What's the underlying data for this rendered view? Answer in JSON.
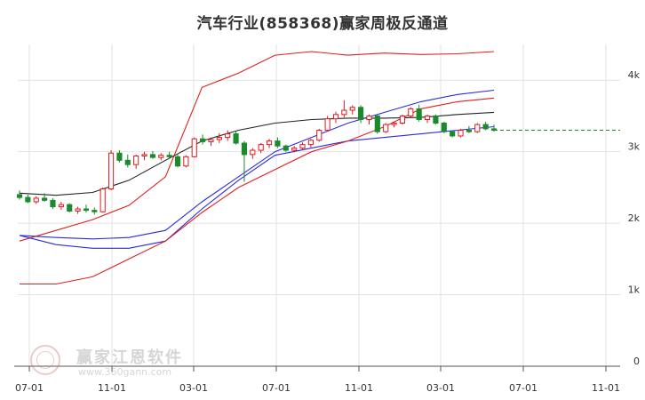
{
  "title": "汽车行业(858368)赢家周极反通道",
  "watermark": {
    "name": "赢家江恩软件",
    "url": "www.360gann.com"
  },
  "chart_data": {
    "type": "candlestick",
    "title": "汽车行业(858368)赢家周极反通道",
    "x_ticks": [
      "07-01",
      "11-01",
      "03-01",
      "07-01",
      "11-01",
      "03-01",
      "07-01",
      "11-01"
    ],
    "y_ticks": [
      "0",
      "1k",
      "2k",
      "3k",
      "4k"
    ],
    "ylim": [
      0,
      4500
    ],
    "grid": true,
    "last_price_line": 3300,
    "colors": {
      "up": "#e0191c",
      "down": "#1b8a2c",
      "outer_band": "#e02020",
      "inner_band": "#2a2ae0",
      "middle_line": "#222222",
      "last_price": "#1b8a2c",
      "grid": "#e2e2e2"
    },
    "series": [
      {
        "name": "",
        "color": "outer_band",
        "values": [
          1750,
          1900,
          2050,
          2250,
          2650,
          3900,
          4100,
          4350,
          4400,
          4350,
          4380,
          4360,
          4370,
          4400
        ]
      },
      {
        "name": "",
        "color": "inner_band",
        "values": [
          1830,
          1700,
          1650,
          1650,
          1750,
          2200,
          2600,
          2950,
          3050,
          3150,
          3200,
          3250,
          3300,
          3350
        ]
      },
      {
        "name": "",
        "color": "middle_line",
        "values": [
          2420,
          2390,
          2430,
          2600,
          2880,
          3150,
          3300,
          3400,
          3450,
          3470,
          3470,
          3480,
          3520,
          3550
        ]
      },
      {
        "name": "",
        "color": "inner_band",
        "values": [
          1830,
          1800,
          1780,
          1800,
          1900,
          2300,
          2650,
          3000,
          3200,
          3400,
          3550,
          3700,
          3800,
          3860
        ]
      },
      {
        "name": "",
        "color": "outer_band",
        "values": [
          1150,
          1150,
          1250,
          1500,
          1750,
          2150,
          2500,
          2750,
          3000,
          3150,
          3350,
          3600,
          3700,
          3750
        ]
      }
    ],
    "candles": [
      {
        "o": 2400,
        "h": 2460,
        "l": 2330,
        "c": 2360
      },
      {
        "o": 2360,
        "h": 2400,
        "l": 2280,
        "c": 2300
      },
      {
        "o": 2300,
        "h": 2380,
        "l": 2270,
        "c": 2350
      },
      {
        "o": 2350,
        "h": 2420,
        "l": 2300,
        "c": 2320
      },
      {
        "o": 2320,
        "h": 2350,
        "l": 2200,
        "c": 2230
      },
      {
        "o": 2230,
        "h": 2300,
        "l": 2190,
        "c": 2260
      },
      {
        "o": 2260,
        "h": 2280,
        "l": 2150,
        "c": 2170
      },
      {
        "o": 2170,
        "h": 2230,
        "l": 2130,
        "c": 2200
      },
      {
        "o": 2200,
        "h": 2260,
        "l": 2150,
        "c": 2180
      },
      {
        "o": 2180,
        "h": 2220,
        "l": 2120,
        "c": 2160
      },
      {
        "o": 2160,
        "h": 2500,
        "l": 2150,
        "c": 2480
      },
      {
        "o": 2480,
        "h": 3020,
        "l": 2460,
        "c": 2980
      },
      {
        "o": 2980,
        "h": 3020,
        "l": 2850,
        "c": 2880
      },
      {
        "o": 2880,
        "h": 2960,
        "l": 2780,
        "c": 2820
      },
      {
        "o": 2820,
        "h": 2960,
        "l": 2760,
        "c": 2940
      },
      {
        "o": 2940,
        "h": 3000,
        "l": 2880,
        "c": 2960
      },
      {
        "o": 2960,
        "h": 3010,
        "l": 2900,
        "c": 2920
      },
      {
        "o": 2920,
        "h": 2980,
        "l": 2880,
        "c": 2950
      },
      {
        "o": 2950,
        "h": 3000,
        "l": 2900,
        "c": 2930
      },
      {
        "o": 2930,
        "h": 2960,
        "l": 2780,
        "c": 2800
      },
      {
        "o": 2800,
        "h": 2950,
        "l": 2780,
        "c": 2930
      },
      {
        "o": 2930,
        "h": 3200,
        "l": 2920,
        "c": 3180
      },
      {
        "o": 3180,
        "h": 3240,
        "l": 3100,
        "c": 3140
      },
      {
        "o": 3140,
        "h": 3200,
        "l": 3080,
        "c": 3170
      },
      {
        "o": 3170,
        "h": 3260,
        "l": 3120,
        "c": 3200
      },
      {
        "o": 3200,
        "h": 3300,
        "l": 3150,
        "c": 3250
      },
      {
        "o": 3250,
        "h": 3280,
        "l": 3100,
        "c": 3120
      },
      {
        "o": 3120,
        "h": 3150,
        "l": 2580,
        "c": 2960
      },
      {
        "o": 2960,
        "h": 3050,
        "l": 2900,
        "c": 3020
      },
      {
        "o": 3020,
        "h": 3120,
        "l": 2980,
        "c": 3100
      },
      {
        "o": 3100,
        "h": 3180,
        "l": 3050,
        "c": 3150
      },
      {
        "o": 3150,
        "h": 3200,
        "l": 3050,
        "c": 3080
      },
      {
        "o": 3080,
        "h": 3100,
        "l": 3000,
        "c": 3020
      },
      {
        "o": 3020,
        "h": 3080,
        "l": 2990,
        "c": 3050
      },
      {
        "o": 3050,
        "h": 3130,
        "l": 3020,
        "c": 3100
      },
      {
        "o": 3100,
        "h": 3180,
        "l": 3060,
        "c": 3160
      },
      {
        "o": 3160,
        "h": 3320,
        "l": 3140,
        "c": 3300
      },
      {
        "o": 3300,
        "h": 3500,
        "l": 3280,
        "c": 3460
      },
      {
        "o": 3460,
        "h": 3560,
        "l": 3400,
        "c": 3520
      },
      {
        "o": 3520,
        "h": 3720,
        "l": 3480,
        "c": 3580
      },
      {
        "o": 3580,
        "h": 3650,
        "l": 3520,
        "c": 3620
      },
      {
        "o": 3620,
        "h": 3650,
        "l": 3400,
        "c": 3450
      },
      {
        "o": 3450,
        "h": 3520,
        "l": 3380,
        "c": 3500
      },
      {
        "o": 3500,
        "h": 3520,
        "l": 3250,
        "c": 3280
      },
      {
        "o": 3280,
        "h": 3400,
        "l": 3260,
        "c": 3380
      },
      {
        "o": 3380,
        "h": 3420,
        "l": 3340,
        "c": 3400
      },
      {
        "o": 3400,
        "h": 3520,
        "l": 3380,
        "c": 3500
      },
      {
        "o": 3500,
        "h": 3620,
        "l": 3480,
        "c": 3600
      },
      {
        "o": 3600,
        "h": 3660,
        "l": 3420,
        "c": 3450
      },
      {
        "o": 3450,
        "h": 3520,
        "l": 3400,
        "c": 3500
      },
      {
        "o": 3500,
        "h": 3520,
        "l": 3380,
        "c": 3400
      },
      {
        "o": 3400,
        "h": 3420,
        "l": 3260,
        "c": 3280
      },
      {
        "o": 3280,
        "h": 3300,
        "l": 3200,
        "c": 3220
      },
      {
        "o": 3220,
        "h": 3320,
        "l": 3200,
        "c": 3300
      },
      {
        "o": 3300,
        "h": 3360,
        "l": 3260,
        "c": 3280
      },
      {
        "o": 3280,
        "h": 3400,
        "l": 3260,
        "c": 3380
      },
      {
        "o": 3380,
        "h": 3420,
        "l": 3300,
        "c": 3320
      },
      {
        "o": 3320,
        "h": 3380,
        "l": 3280,
        "c": 3300
      }
    ]
  }
}
